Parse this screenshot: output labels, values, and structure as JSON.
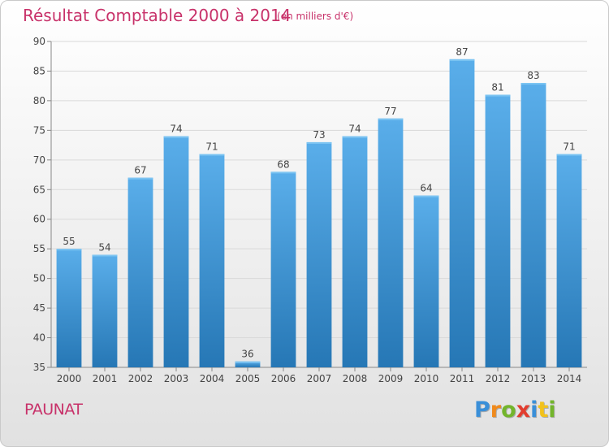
{
  "title": "Résultat Comptable 2000 à 2014",
  "subtitle": "(en milliers d'€)",
  "commune": "PAUNAT",
  "logo": {
    "text": "Proxiti",
    "letters": [
      {
        "ch": "P",
        "color": "#3a8fd8"
      },
      {
        "ch": "r",
        "color": "#f08a1c"
      },
      {
        "ch": "o",
        "color": "#73b52c"
      },
      {
        "ch": "x",
        "color": "#e23d2f"
      },
      {
        "ch": "i",
        "color": "#3a8fd8"
      },
      {
        "ch": "t",
        "color": "#f2c21b"
      },
      {
        "ch": "i",
        "color": "#73b52c"
      }
    ]
  },
  "colors": {
    "bar_top": "#5aaeea",
    "bar_bottom": "#2677b5",
    "title": "#c8326a"
  },
  "chart_data": {
    "type": "bar",
    "categories": [
      "2000",
      "2001",
      "2002",
      "2003",
      "2004",
      "2005",
      "2006",
      "2007",
      "2008",
      "2009",
      "2010",
      "2011",
      "2012",
      "2013",
      "2014"
    ],
    "values": [
      55,
      54,
      67,
      74,
      71,
      36,
      68,
      73,
      74,
      77,
      64,
      87,
      81,
      83,
      71
    ],
    "yticks": [
      35,
      40,
      45,
      50,
      55,
      60,
      65,
      70,
      75,
      80,
      85,
      90
    ],
    "ylim": [
      35,
      90
    ],
    "grid": true
  }
}
